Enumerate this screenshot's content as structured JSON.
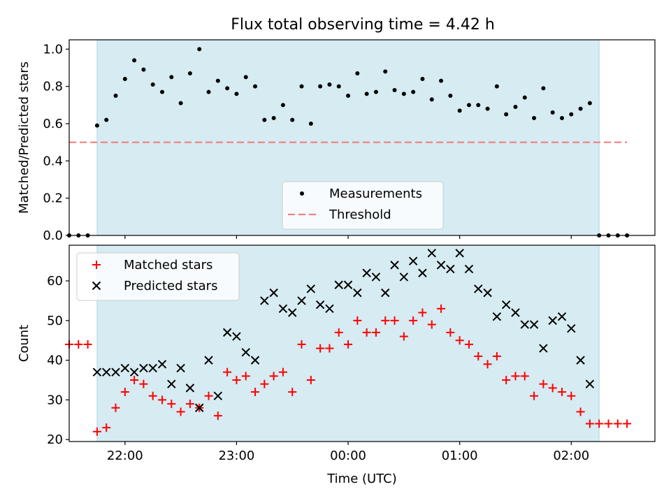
{
  "title": "Flux total observing time = 4.42 h",
  "chart_data": [
    {
      "type": "scatter",
      "ylabel": "Matched/Predicted stars",
      "xlabel": "",
      "xlim": [
        "21:30",
        "02:45"
      ],
      "ylim": [
        0,
        1.05
      ],
      "yticks": [
        "0.0",
        "0.2",
        "0.4",
        "0.6",
        "0.8",
        "1.0"
      ],
      "xticks": [
        "22:00",
        "23:00",
        "00:00",
        "01:00",
        "02:00"
      ],
      "observing_window": [
        "21:45",
        "02:15"
      ],
      "legend": {
        "placement": "bottom-center",
        "entries": [
          "Measurements",
          "Threshold"
        ]
      },
      "threshold": {
        "name": "Threshold",
        "value": 0.5,
        "x_range": [
          "21:30",
          "02:30"
        ],
        "color": "#f08080"
      },
      "series": [
        {
          "name": "Measurements",
          "marker": "dot",
          "color": "#000000",
          "points": [
            [
              "21:30",
              0.0
            ],
            [
              "21:35",
              0.0
            ],
            [
              "21:40",
              0.0
            ],
            [
              "21:45",
              0.59
            ],
            [
              "21:50",
              0.62
            ],
            [
              "21:55",
              0.75
            ],
            [
              "22:00",
              0.84
            ],
            [
              "22:05",
              0.94
            ],
            [
              "22:10",
              0.89
            ],
            [
              "22:15",
              0.81
            ],
            [
              "22:20",
              0.77
            ],
            [
              "22:25",
              0.85
            ],
            [
              "22:30",
              0.71
            ],
            [
              "22:35",
              0.87
            ],
            [
              "22:40",
              1.0
            ],
            [
              "22:45",
              0.77
            ],
            [
              "22:50",
              0.83
            ],
            [
              "22:55",
              0.79
            ],
            [
              "23:00",
              0.76
            ],
            [
              "23:05",
              0.85
            ],
            [
              "23:10",
              0.8
            ],
            [
              "23:15",
              0.62
            ],
            [
              "23:20",
              0.63
            ],
            [
              "23:25",
              0.7
            ],
            [
              "23:30",
              0.62
            ],
            [
              "23:35",
              0.8
            ],
            [
              "23:40",
              0.6
            ],
            [
              "23:45",
              0.8
            ],
            [
              "23:50",
              0.81
            ],
            [
              "23:55",
              0.8
            ],
            [
              "00:00",
              0.75
            ],
            [
              "00:05",
              0.87
            ],
            [
              "00:10",
              0.76
            ],
            [
              "00:15",
              0.77
            ],
            [
              "00:20",
              0.88
            ],
            [
              "00:25",
              0.78
            ],
            [
              "00:30",
              0.76
            ],
            [
              "00:35",
              0.77
            ],
            [
              "00:40",
              0.84
            ],
            [
              "00:45",
              0.73
            ],
            [
              "00:50",
              0.83
            ],
            [
              "00:55",
              0.75
            ],
            [
              "01:00",
              0.67
            ],
            [
              "01:05",
              0.7
            ],
            [
              "01:10",
              0.7
            ],
            [
              "01:15",
              0.68
            ],
            [
              "01:20",
              0.8
            ],
            [
              "01:25",
              0.65
            ],
            [
              "01:30",
              0.69
            ],
            [
              "01:35",
              0.74
            ],
            [
              "01:40",
              0.63
            ],
            [
              "01:45",
              0.79
            ],
            [
              "01:50",
              0.66
            ],
            [
              "01:55",
              0.63
            ],
            [
              "02:00",
              0.65
            ],
            [
              "02:05",
              0.68
            ],
            [
              "02:10",
              0.71
            ],
            [
              "02:15",
              0.0
            ],
            [
              "02:20",
              0.0
            ],
            [
              "02:25",
              0.0
            ],
            [
              "02:30",
              0.0
            ]
          ]
        }
      ]
    },
    {
      "type": "scatter",
      "ylabel": "Count",
      "xlabel": "Time (UTC)",
      "xlim": [
        "21:30",
        "02:45"
      ],
      "ylim": [
        19.5,
        69
      ],
      "yticks": [
        "20",
        "30",
        "40",
        "50",
        "60"
      ],
      "xticks": [
        "22:00",
        "23:00",
        "00:00",
        "01:00",
        "02:00"
      ],
      "observing_window": [
        "21:45",
        "02:15"
      ],
      "legend": {
        "placement": "upper-left",
        "entries": [
          "Matched stars",
          "Predicted stars"
        ]
      },
      "series": [
        {
          "name": "Matched stars",
          "marker": "plus",
          "color": "#ff0000",
          "points": [
            [
              "21:30",
              44
            ],
            [
              "21:35",
              44
            ],
            [
              "21:40",
              44
            ],
            [
              "21:45",
              22
            ],
            [
              "21:50",
              23
            ],
            [
              "21:55",
              28
            ],
            [
              "22:00",
              32
            ],
            [
              "22:05",
              35
            ],
            [
              "22:10",
              34
            ],
            [
              "22:15",
              31
            ],
            [
              "22:20",
              30
            ],
            [
              "22:25",
              29
            ],
            [
              "22:30",
              27
            ],
            [
              "22:35",
              29
            ],
            [
              "22:40",
              28
            ],
            [
              "22:45",
              31
            ],
            [
              "22:50",
              26
            ],
            [
              "22:55",
              37
            ],
            [
              "23:00",
              35
            ],
            [
              "23:05",
              36
            ],
            [
              "23:10",
              32
            ],
            [
              "23:15",
              34
            ],
            [
              "23:20",
              36
            ],
            [
              "23:25",
              37
            ],
            [
              "23:30",
              32
            ],
            [
              "23:35",
              44
            ],
            [
              "23:40",
              35
            ],
            [
              "23:45",
              43
            ],
            [
              "23:50",
              43
            ],
            [
              "23:55",
              47
            ],
            [
              "00:00",
              44
            ],
            [
              "00:05",
              50
            ],
            [
              "00:10",
              47
            ],
            [
              "00:15",
              47
            ],
            [
              "00:20",
              50
            ],
            [
              "00:25",
              50
            ],
            [
              "00:30",
              46
            ],
            [
              "00:35",
              50
            ],
            [
              "00:40",
              52
            ],
            [
              "00:45",
              49
            ],
            [
              "00:50",
              53
            ],
            [
              "00:55",
              47
            ],
            [
              "01:00",
              45
            ],
            [
              "01:05",
              44
            ],
            [
              "01:10",
              41
            ],
            [
              "01:15",
              39
            ],
            [
              "01:20",
              41
            ],
            [
              "01:25",
              35
            ],
            [
              "01:30",
              36
            ],
            [
              "01:35",
              36
            ],
            [
              "01:40",
              31
            ],
            [
              "01:45",
              34
            ],
            [
              "01:50",
              33
            ],
            [
              "01:55",
              32
            ],
            [
              "02:00",
              31
            ],
            [
              "02:05",
              27
            ],
            [
              "02:10",
              24
            ],
            [
              "02:15",
              24
            ],
            [
              "02:20",
              24
            ],
            [
              "02:25",
              24
            ],
            [
              "02:30",
              24
            ]
          ]
        },
        {
          "name": "Predicted stars",
          "marker": "x",
          "color": "#000000",
          "points": [
            [
              "21:45",
              37
            ],
            [
              "21:50",
              37
            ],
            [
              "21:55",
              37
            ],
            [
              "22:00",
              38
            ],
            [
              "22:05",
              37
            ],
            [
              "22:10",
              38
            ],
            [
              "22:15",
              38
            ],
            [
              "22:20",
              39
            ],
            [
              "22:25",
              34
            ],
            [
              "22:30",
              38
            ],
            [
              "22:35",
              33
            ],
            [
              "22:40",
              28
            ],
            [
              "22:45",
              40
            ],
            [
              "22:50",
              31
            ],
            [
              "22:55",
              47
            ],
            [
              "23:00",
              46
            ],
            [
              "23:05",
              42
            ],
            [
              "23:10",
              40
            ],
            [
              "23:15",
              55
            ],
            [
              "23:20",
              57
            ],
            [
              "23:25",
              53
            ],
            [
              "23:30",
              52
            ],
            [
              "23:35",
              55
            ],
            [
              "23:40",
              58
            ],
            [
              "23:45",
              54
            ],
            [
              "23:50",
              53
            ],
            [
              "23:55",
              59
            ],
            [
              "00:00",
              59
            ],
            [
              "00:05",
              57
            ],
            [
              "00:10",
              62
            ],
            [
              "00:15",
              61
            ],
            [
              "00:20",
              57
            ],
            [
              "00:25",
              64
            ],
            [
              "00:30",
              61
            ],
            [
              "00:35",
              65
            ],
            [
              "00:40",
              62
            ],
            [
              "00:45",
              67
            ],
            [
              "00:50",
              64
            ],
            [
              "00:55",
              63
            ],
            [
              "01:00",
              67
            ],
            [
              "01:05",
              63
            ],
            [
              "01:10",
              58
            ],
            [
              "01:15",
              57
            ],
            [
              "01:20",
              51
            ],
            [
              "01:25",
              54
            ],
            [
              "01:30",
              52
            ],
            [
              "01:35",
              49
            ],
            [
              "01:40",
              49
            ],
            [
              "01:45",
              43
            ],
            [
              "01:50",
              50
            ],
            [
              "01:55",
              51
            ],
            [
              "02:00",
              48
            ],
            [
              "02:05",
              40
            ],
            [
              "02:10",
              34
            ]
          ]
        }
      ]
    }
  ]
}
